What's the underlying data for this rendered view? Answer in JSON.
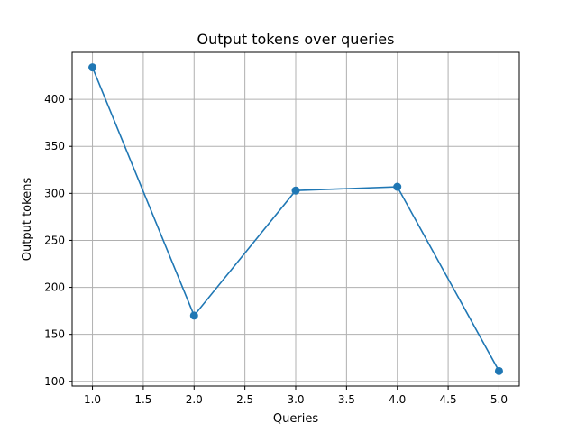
{
  "chart_data": {
    "type": "line",
    "title": "Output tokens over queries",
    "xlabel": "Queries",
    "ylabel": "Output tokens",
    "x": [
      1,
      2,
      3,
      4,
      5
    ],
    "series": [
      {
        "values": [
          434,
          170,
          303,
          307,
          111
        ],
        "color": "#1f77b4",
        "marker": "circle"
      }
    ],
    "xlim": [
      0.8,
      5.2
    ],
    "ylim": [
      95,
      450
    ],
    "xticks": [
      "1.0",
      "1.5",
      "2.0",
      "2.5",
      "3.0",
      "3.5",
      "4.0",
      "4.5",
      "5.0"
    ],
    "yticks": [
      "100",
      "150",
      "200",
      "250",
      "300",
      "350",
      "400"
    ],
    "grid": true
  }
}
